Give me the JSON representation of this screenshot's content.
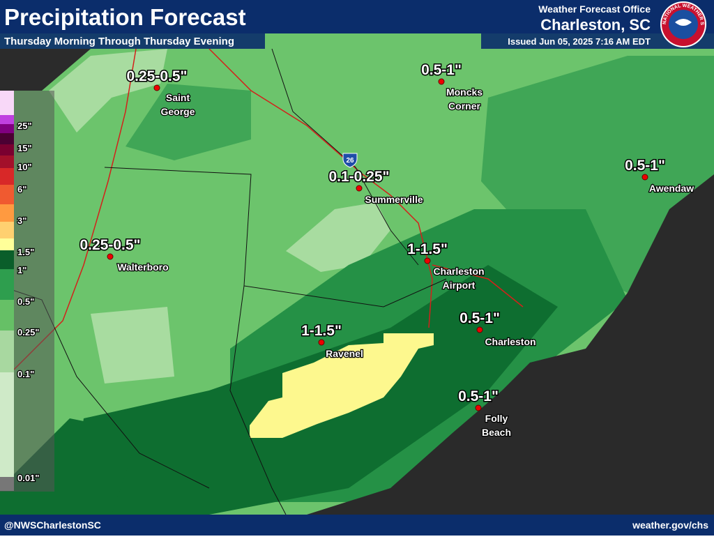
{
  "header": {
    "title": "Precipitation Forecast",
    "subtitle": "Thursday Morning Through Thursday Evening",
    "office": "Weather Forecast Office",
    "location": "Charleston, SC",
    "issued": "Issued Jun 05, 2025 7:16 AM EDT",
    "logo": "NATIONAL WEATHER SERVICE"
  },
  "legend": {
    "labels": [
      "25\"",
      "15\"",
      "10\"",
      "6\"",
      "3\"",
      "1.5\"",
      "1\"",
      "0.5\"",
      "0.25\"",
      "0.1\"",
      "0.01\""
    ]
  },
  "shield": "26",
  "locations": [
    {
      "amount": "0.25-0.5\"",
      "name": [
        "Saint",
        "George"
      ]
    },
    {
      "amount": "0.5-1\"",
      "name": [
        "Moncks",
        "Corner"
      ]
    },
    {
      "amount": "0.1-0.25\"",
      "name": [
        "Summerville"
      ]
    },
    {
      "amount": "0.5-1\"",
      "name": [
        "Awendaw"
      ]
    },
    {
      "amount": "0.25-0.5\"",
      "name": [
        "Walterboro"
      ]
    },
    {
      "amount": "1-1.5\"",
      "name": [
        "Charleston",
        "Airport"
      ]
    },
    {
      "amount": "0.5-1\"",
      "name": [
        "Charleston"
      ]
    },
    {
      "amount": "1-1.5\"",
      "name": [
        "Ravenel"
      ]
    },
    {
      "amount": "0.5-1\"",
      "name": [
        "Folly",
        "Beach"
      ]
    }
  ],
  "footer": {
    "left": "@NWSCharlestonSC",
    "right": "weather.gov/chs"
  }
}
